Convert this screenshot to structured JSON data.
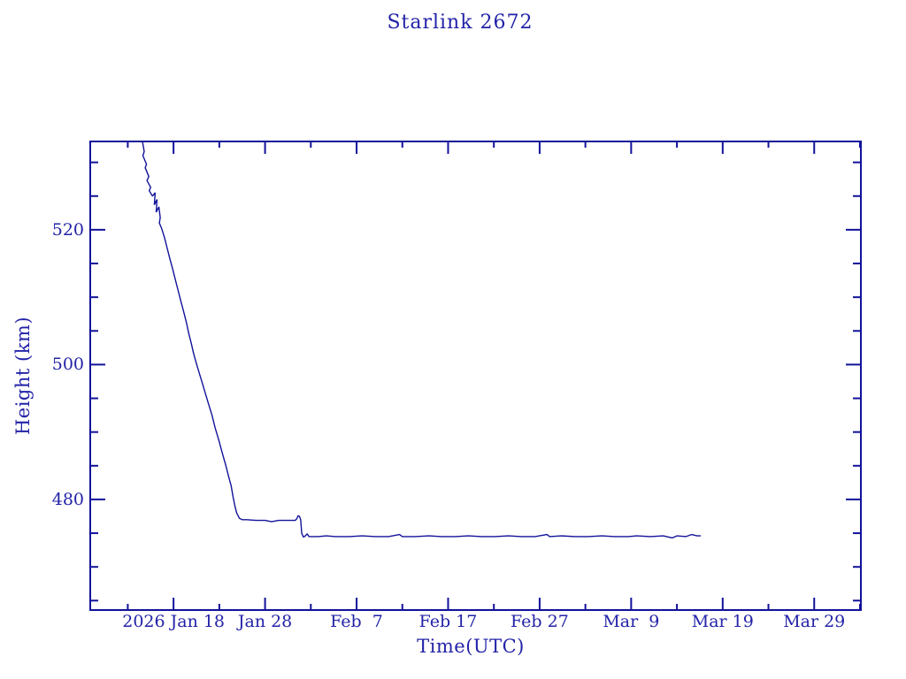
{
  "page": {
    "background": "#ffffff"
  },
  "chart_data": {
    "type": "line",
    "title": "Starlink 2672",
    "xlabel": "Time(UTC)",
    "ylabel": "Height (km)",
    "x_unit": "day_of_year_2026",
    "x_domain": [
      8.9,
      93.1
    ],
    "y_domain": [
      463.6,
      533.1
    ],
    "grid": false,
    "legend": false,
    "ink_color": "#12129b",
    "text_color": "#2323a8",
    "x_major_ticks": [
      {
        "day": 18,
        "label": "2026 Jan 18"
      },
      {
        "day": 28,
        "label": "Jan 28"
      },
      {
        "day": 38,
        "label": "Feb  7"
      },
      {
        "day": 48,
        "label": "Feb 17"
      },
      {
        "day": 58,
        "label": "Feb 27"
      },
      {
        "day": 68,
        "label": "Mar  9"
      },
      {
        "day": 78,
        "label": "Mar 19"
      },
      {
        "day": 88,
        "label": "Mar 29"
      }
    ],
    "x_minor_ticks": [
      13,
      23,
      33,
      43,
      53,
      63,
      73,
      83,
      93
    ],
    "y_major_ticks": [
      {
        "km": 480,
        "label": "480"
      },
      {
        "km": 500,
        "label": "500"
      },
      {
        "km": 520,
        "label": "520"
      }
    ],
    "y_minor_ticks": [
      465,
      470,
      475,
      485,
      490,
      495,
      505,
      510,
      515,
      525,
      530
    ],
    "series": [
      {
        "name": "Starlink 2672 height",
        "points": [
          [
            14.6,
            533.1
          ],
          [
            14.8,
            531.6
          ],
          [
            14.65,
            531.0
          ],
          [
            15.05,
            529.7
          ],
          [
            14.9,
            529.2
          ],
          [
            15.3,
            527.9
          ],
          [
            15.1,
            527.3
          ],
          [
            15.5,
            526.3
          ],
          [
            15.35,
            525.8
          ],
          [
            15.7,
            525.0
          ],
          [
            16.0,
            525.5
          ],
          [
            15.9,
            523.7
          ],
          [
            16.2,
            524.5
          ],
          [
            16.1,
            522.6
          ],
          [
            16.4,
            523.4
          ],
          [
            16.55,
            521.8
          ],
          [
            16.45,
            521.0
          ],
          [
            16.7,
            520.2
          ],
          [
            17.0,
            518.9
          ],
          [
            17.3,
            517.3
          ],
          [
            17.6,
            515.7
          ],
          [
            17.9,
            514.2
          ],
          [
            18.2,
            512.6
          ],
          [
            18.5,
            511.0
          ],
          [
            18.8,
            509.4
          ],
          [
            19.1,
            507.9
          ],
          [
            19.4,
            506.3
          ],
          [
            19.65,
            504.7
          ],
          [
            19.95,
            503.1
          ],
          [
            20.2,
            501.6
          ],
          [
            20.6,
            499.7
          ],
          [
            21.0,
            497.9
          ],
          [
            21.4,
            496.1
          ],
          [
            21.8,
            494.3
          ],
          [
            22.2,
            492.5
          ],
          [
            22.55,
            490.6
          ],
          [
            22.95,
            488.8
          ],
          [
            23.3,
            487.0
          ],
          [
            23.7,
            485.1
          ],
          [
            24.0,
            483.5
          ],
          [
            24.3,
            482.0
          ],
          [
            24.5,
            480.4
          ],
          [
            24.7,
            479.1
          ],
          [
            24.9,
            478.0
          ],
          [
            25.2,
            477.2
          ],
          [
            25.5,
            477.0
          ],
          [
            26.0,
            477.0
          ],
          [
            27.0,
            476.9
          ],
          [
            28.0,
            476.9
          ],
          [
            28.7,
            476.7
          ],
          [
            29.5,
            476.9
          ],
          [
            30.5,
            476.9
          ],
          [
            31.3,
            476.9
          ],
          [
            31.5,
            477.2
          ],
          [
            31.6,
            477.6
          ],
          [
            31.75,
            477.5
          ],
          [
            31.85,
            477.2
          ],
          [
            31.9,
            476.9
          ],
          [
            32.0,
            475.0
          ],
          [
            32.2,
            474.4
          ],
          [
            32.4,
            474.6
          ],
          [
            32.6,
            474.9
          ],
          [
            32.8,
            474.5
          ],
          [
            33.8,
            474.5
          ],
          [
            34.7,
            474.6
          ],
          [
            35.7,
            474.5
          ],
          [
            37.2,
            474.5
          ],
          [
            38.6,
            474.6
          ],
          [
            40.1,
            474.5
          ],
          [
            41.5,
            474.5
          ],
          [
            42.7,
            474.8
          ],
          [
            43.0,
            474.5
          ],
          [
            44.4,
            474.5
          ],
          [
            45.9,
            474.6
          ],
          [
            47.3,
            474.5
          ],
          [
            48.8,
            474.5
          ],
          [
            50.2,
            474.6
          ],
          [
            51.7,
            474.5
          ],
          [
            53.1,
            474.5
          ],
          [
            54.6,
            474.6
          ],
          [
            56.0,
            474.5
          ],
          [
            57.5,
            474.5
          ],
          [
            58.8,
            474.8
          ],
          [
            59.1,
            474.5
          ],
          [
            60.4,
            474.6
          ],
          [
            61.9,
            474.5
          ],
          [
            63.3,
            474.5
          ],
          [
            64.8,
            474.6
          ],
          [
            66.2,
            474.5
          ],
          [
            67.7,
            474.5
          ],
          [
            68.6,
            474.6
          ],
          [
            70.1,
            474.5
          ],
          [
            71.5,
            474.6
          ],
          [
            72.5,
            474.3
          ],
          [
            73.0,
            474.6
          ],
          [
            74.0,
            474.5
          ],
          [
            74.6,
            474.8
          ],
          [
            75.2,
            474.6
          ],
          [
            75.6,
            474.6
          ]
        ]
      }
    ]
  }
}
